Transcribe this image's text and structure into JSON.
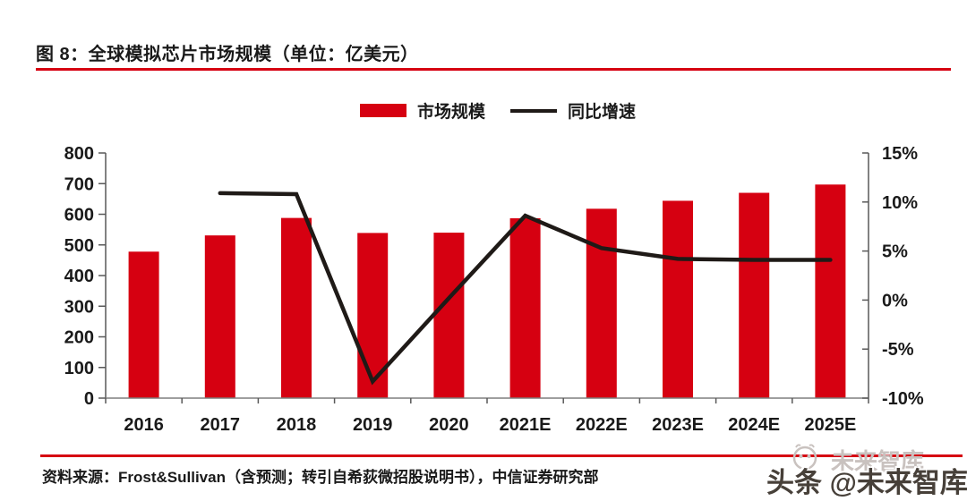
{
  "figure": {
    "title": "图 8：全球模拟芯片市场规模（单位：亿美元）",
    "source": "资料来源：Frost&Sullivan（含预测；转引自希荻微招股说明书），中信证券研究部"
  },
  "colors": {
    "accent_red": "#d60011",
    "line_black": "#1f1a17",
    "text": "#1a1a1a",
    "axis_dark": "#595959",
    "axis_light": "#7f7f7f",
    "watermark_ghost": "#c9c2bf",
    "watermark_main": "#474039"
  },
  "legend": [
    {
      "label": "市场规模",
      "type": "bar",
      "color": "#d60011"
    },
    {
      "label": "同比增速",
      "type": "line",
      "color": "#1f1a17"
    }
  ],
  "watermark": {
    "ghost": "未来智库",
    "main": "头条 @未来智库",
    "face_icon": "smiley-circle-icon"
  },
  "chart_data": {
    "type": "bar",
    "combo": "bar+line",
    "title": "全球模拟芯片市场规模（单位：亿美元）",
    "legend_position": "top",
    "grid": false,
    "categories": [
      "2016",
      "2017",
      "2018",
      "2019",
      "2020",
      "2021E",
      "2022E",
      "2023E",
      "2024E",
      "2025E"
    ],
    "series": [
      {
        "name": "市场规模",
        "type": "bar",
        "axis": "left",
        "color": "#d60011",
        "values": [
          478,
          531,
          588,
          539,
          540,
          587,
          618,
          644,
          670,
          697
        ]
      },
      {
        "name": "同比增速",
        "type": "line",
        "axis": "right",
        "color": "#1f1a17",
        "values": [
          null,
          10.9,
          10.8,
          -8.3,
          0.2,
          8.6,
          5.3,
          4.2,
          4.1,
          4.1
        ]
      }
    ],
    "left_axis": {
      "min": 0,
      "max": 800,
      "step": 100,
      "tick_labels": [
        "0",
        "100",
        "200",
        "300",
        "400",
        "500",
        "600",
        "700",
        "800"
      ]
    },
    "right_axis": {
      "min": -10,
      "max": 15,
      "step": 5,
      "format": "percent",
      "tick_labels": [
        "-10%",
        "-5%",
        "0%",
        "5%",
        "10%",
        "15%"
      ]
    }
  }
}
